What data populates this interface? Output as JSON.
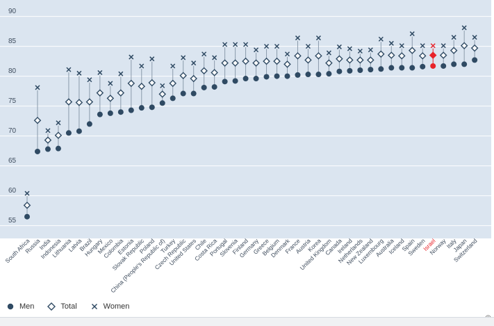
{
  "chart_data": {
    "type": "scatter",
    "title": "",
    "xlabel": "",
    "ylabel": "",
    "ylim": [
      53,
      91
    ],
    "yticks": [
      55,
      60,
      65,
      70,
      75,
      80,
      85,
      90
    ],
    "highlight": "Israel",
    "colors": {
      "men": "#2f4a63",
      "total": "#2f4a63",
      "women": "#2f4a63",
      "highlight": "#e8232a",
      "plot_bg": "#dbe5f0",
      "grid": "#ffffff"
    },
    "categories": [
      "South Africa",
      "Russia",
      "India",
      "Indonesia",
      "Lithuania",
      "Latvia",
      "Brazil",
      "Hungary",
      "Mexico",
      "Colombia",
      "Estonia",
      "Slovak Republic",
      "Poland",
      "China (People's Republic of)",
      "Turkey",
      "Czech Republic",
      "United States",
      "Chile",
      "Costa Rica",
      "Portugal",
      "Slovenia",
      "Finland",
      "Germany",
      "Greece",
      "Belgium",
      "Denmark",
      "France",
      "Austria",
      "Korea",
      "United Kingdom",
      "Canada",
      "Ireland",
      "Netherlands",
      "New Zealand",
      "Luxembourg",
      "Australia",
      "Iceland",
      "Spain",
      "Sweden",
      "Israel",
      "Norway",
      "Italy",
      "Japan",
      "Switzerland"
    ],
    "series": [
      {
        "name": "Men",
        "marker": "circle",
        "values": [
          55.5,
          66.4,
          66.8,
          66.9,
          69.5,
          69.8,
          71.0,
          72.6,
          72.8,
          73.0,
          73.3,
          73.7,
          73.8,
          74.5,
          75.3,
          76.1,
          76.1,
          77.1,
          77.2,
          78.1,
          78.2,
          78.6,
          78.6,
          78.9,
          79.0,
          79.0,
          79.2,
          79.3,
          79.3,
          79.4,
          79.8,
          79.9,
          80.0,
          80.1,
          80.2,
          80.4,
          80.4,
          80.4,
          80.6,
          80.7,
          80.7,
          81.0,
          81.0,
          81.7
        ]
      },
      {
        "name": "Total",
        "marker": "diamond",
        "values": [
          57.4,
          71.6,
          68.3,
          69.1,
          74.7,
          74.6,
          74.7,
          76.2,
          75.3,
          76.2,
          77.8,
          77.3,
          77.9,
          76.0,
          77.8,
          79.1,
          78.6,
          79.9,
          79.6,
          81.2,
          81.2,
          81.5,
          81.2,
          81.5,
          81.5,
          81.0,
          82.4,
          81.7,
          82.4,
          81.2,
          81.9,
          81.7,
          81.7,
          81.7,
          82.7,
          82.5,
          82.4,
          83.3,
          82.4,
          82.5,
          82.5,
          83.3,
          84.1,
          83.7
        ]
      },
      {
        "name": "Women",
        "marker": "cross",
        "values": [
          59.4,
          77.1,
          69.9,
          71.2,
          80.1,
          79.5,
          78.4,
          79.6,
          77.8,
          79.4,
          82.2,
          80.7,
          81.9,
          77.4,
          80.7,
          82.1,
          81.2,
          82.7,
          82.1,
          84.3,
          84.3,
          84.3,
          83.4,
          84.0,
          84.0,
          82.7,
          85.4,
          84.0,
          85.4,
          82.9,
          83.9,
          83.6,
          83.2,
          83.4,
          85.2,
          84.5,
          84.1,
          86.1,
          84.1,
          84.1,
          84.1,
          85.5,
          87.1,
          85.5
        ]
      }
    ]
  },
  "legend": {
    "men": "Men",
    "total": "Total",
    "women": "Women"
  },
  "footer": {
    "copyright": "©"
  }
}
